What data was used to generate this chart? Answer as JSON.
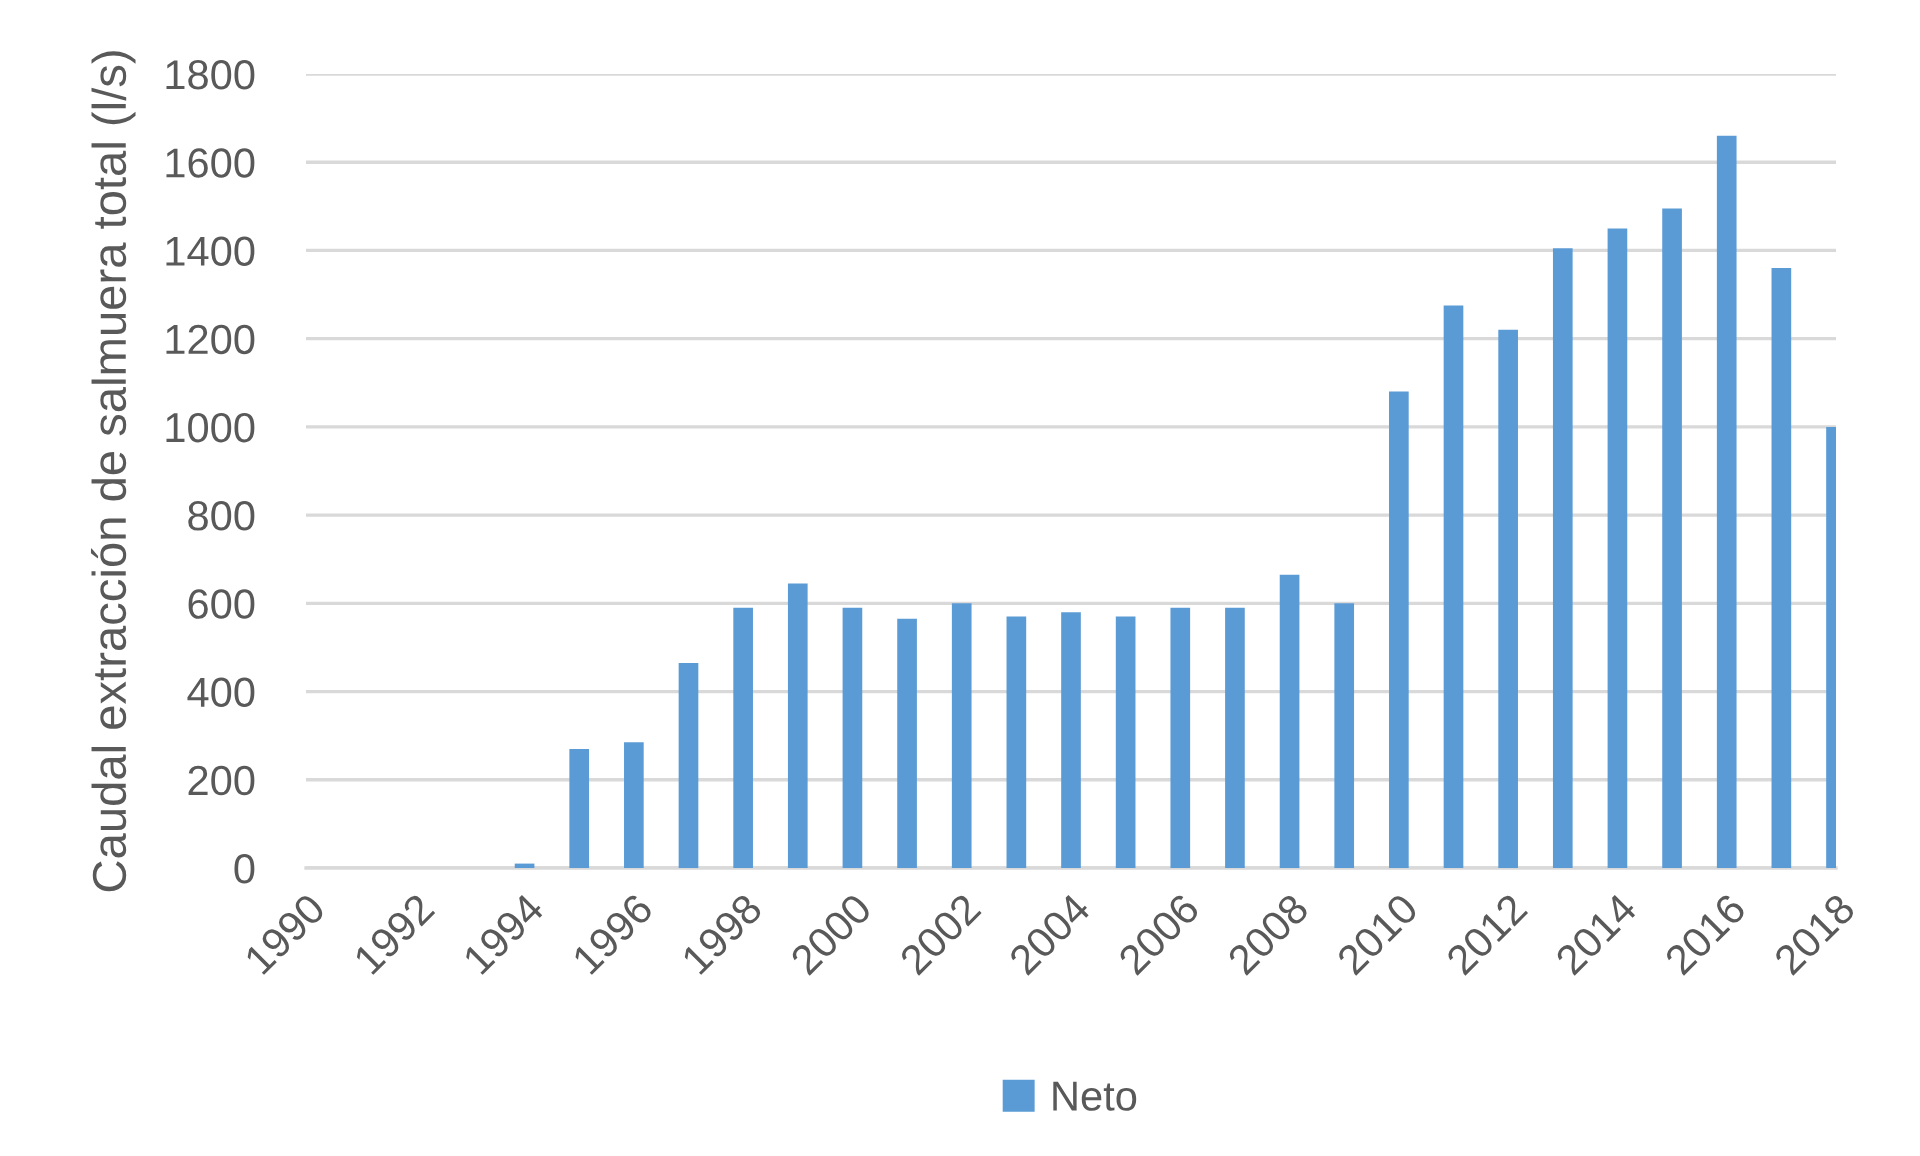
{
  "chart_data": {
    "type": "bar",
    "ylabel": "Caudal extracción de salmuera total (l/s)",
    "x": [
      1994,
      1995,
      1996,
      1997,
      1998,
      1999,
      2000,
      2001,
      2002,
      2003,
      2004,
      2005,
      2006,
      2007,
      2008,
      2009,
      2010,
      2011,
      2012,
      2013,
      2014,
      2015,
      2016,
      2017,
      2018
    ],
    "series": [
      {
        "name": "Neto",
        "color": "#5b9bd5",
        "values": [
          10,
          270,
          285,
          465,
          590,
          645,
          590,
          565,
          600,
          570,
          580,
          570,
          590,
          590,
          665,
          600,
          1080,
          1275,
          1220,
          1405,
          1450,
          1495,
          1660,
          1360,
          1000
        ]
      }
    ],
    "xlim": [
      1990,
      2018
    ],
    "xticks": [
      1990,
      1992,
      1994,
      1996,
      1998,
      2000,
      2002,
      2004,
      2006,
      2008,
      2010,
      2012,
      2014,
      2016,
      2018
    ],
    "ylim": [
      0,
      1800
    ],
    "yticks": [
      0,
      200,
      400,
      600,
      800,
      1000,
      1200,
      1400,
      1600,
      1800
    ],
    "grid": "y",
    "legend": "bottom"
  }
}
